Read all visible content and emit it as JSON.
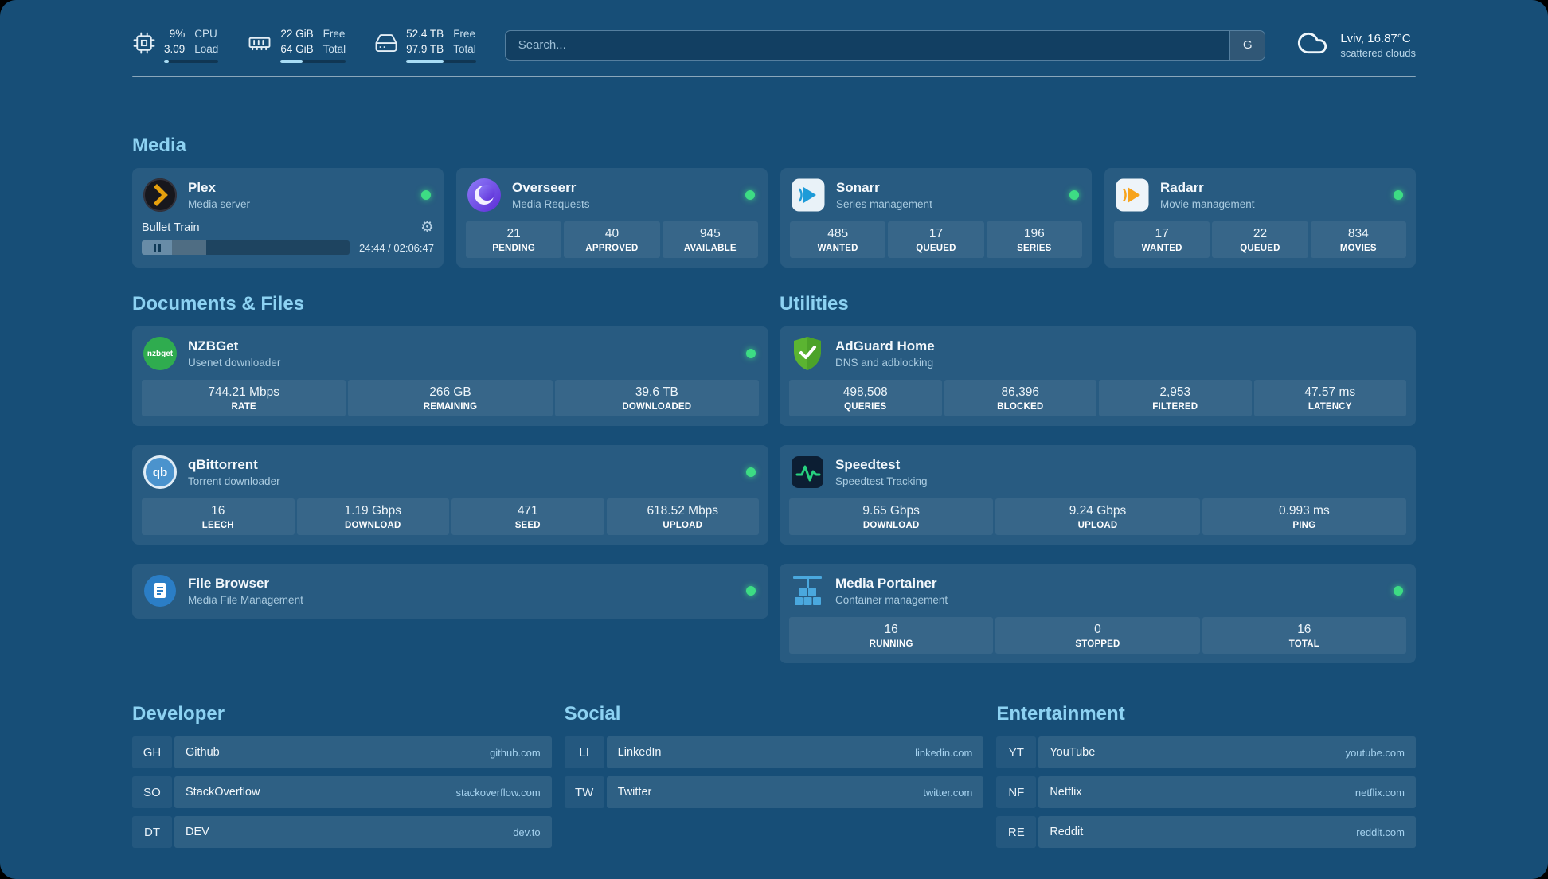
{
  "colors": {
    "background": "#174e77",
    "card": "rgba(255,255,255,0.075)",
    "accent_green": "#3ddc84",
    "heading_blue": "#8dd2f2",
    "link_blue": "#a5d2ef",
    "plex_gold": "#e5a00d"
  },
  "header": {
    "stats": [
      {
        "icon": "cpu-icon",
        "values": [
          "9%",
          "3.09"
        ],
        "labels": [
          "CPU",
          "Load"
        ],
        "progress": 9
      },
      {
        "icon": "memory-icon",
        "values": [
          "22 GiB",
          "64 GiB"
        ],
        "labels": [
          "Free",
          "Total"
        ],
        "progress": 34
      },
      {
        "icon": "disk-icon",
        "values": [
          "52.4 TB",
          "97.9 TB"
        ],
        "labels": [
          "Free",
          "Total"
        ],
        "progress": 54
      }
    ],
    "search": {
      "placeholder": "Search...",
      "provider_label": "G"
    },
    "weather": {
      "location": "Lviv, 16.87°C",
      "condition": "scattered clouds"
    }
  },
  "media": {
    "title": "Media",
    "plex": {
      "name": "Plex",
      "subtitle": "Media server",
      "now_playing": "Bullet Train",
      "time": "24:44 / 02:06:47",
      "progress": 19.5
    },
    "overseerr": {
      "name": "Overseerr",
      "subtitle": "Media Requests",
      "stats": [
        {
          "value": "21",
          "label": "PENDING"
        },
        {
          "value": "40",
          "label": "APPROVED"
        },
        {
          "value": "945",
          "label": "AVAILABLE"
        }
      ]
    },
    "sonarr": {
      "name": "Sonarr",
      "subtitle": "Series management",
      "stats": [
        {
          "value": "485",
          "label": "WANTED"
        },
        {
          "value": "17",
          "label": "QUEUED"
        },
        {
          "value": "196",
          "label": "SERIES"
        }
      ]
    },
    "radarr": {
      "name": "Radarr",
      "subtitle": "Movie management",
      "stats": [
        {
          "value": "17",
          "label": "WANTED"
        },
        {
          "value": "22",
          "label": "QUEUED"
        },
        {
          "value": "834",
          "label": "MOVIES"
        }
      ]
    }
  },
  "documents": {
    "title": "Documents & Files",
    "nzbget": {
      "name": "NZBGet",
      "subtitle": "Usenet downloader",
      "icon_text": "nzbget",
      "stats": [
        {
          "value": "744.21 Mbps",
          "label": "RATE"
        },
        {
          "value": "266 GB",
          "label": "REMAINING"
        },
        {
          "value": "39.6 TB",
          "label": "DOWNLOADED"
        }
      ]
    },
    "qbittorrent": {
      "name": "qBittorrent",
      "subtitle": "Torrent downloader",
      "icon_text": "qb",
      "stats": [
        {
          "value": "16",
          "label": "LEECH"
        },
        {
          "value": "1.19 Gbps",
          "label": "DOWNLOAD"
        },
        {
          "value": "471",
          "label": "SEED"
        },
        {
          "value": "618.52 Mbps",
          "label": "UPLOAD"
        }
      ]
    },
    "filebrowser": {
      "name": "File Browser",
      "subtitle": "Media File Management"
    }
  },
  "utilities": {
    "title": "Utilities",
    "adguard": {
      "name": "AdGuard Home",
      "subtitle": "DNS and adblocking",
      "stats": [
        {
          "value": "498,508",
          "label": "QUERIES"
        },
        {
          "value": "86,396",
          "label": "BLOCKED"
        },
        {
          "value": "2,953",
          "label": "FILTERED"
        },
        {
          "value": "47.57 ms",
          "label": "LATENCY"
        }
      ]
    },
    "speedtest": {
      "name": "Speedtest",
      "subtitle": "Speedtest Tracking",
      "stats": [
        {
          "value": "9.65 Gbps",
          "label": "DOWNLOAD"
        },
        {
          "value": "9.24 Gbps",
          "label": "UPLOAD"
        },
        {
          "value": "0.993 ms",
          "label": "PING"
        }
      ]
    },
    "portainer": {
      "name": "Media Portainer",
      "subtitle": "Container management",
      "stats": [
        {
          "value": "16",
          "label": "RUNNING"
        },
        {
          "value": "0",
          "label": "STOPPED"
        },
        {
          "value": "16",
          "label": "TOTAL"
        }
      ]
    }
  },
  "bookmarks": [
    {
      "title": "Developer",
      "items": [
        {
          "abbr": "GH",
          "name": "Github",
          "url": "github.com"
        },
        {
          "abbr": "SO",
          "name": "StackOverflow",
          "url": "stackoverflow.com"
        },
        {
          "abbr": "DT",
          "name": "DEV",
          "url": "dev.to"
        }
      ]
    },
    {
      "title": "Social",
      "items": [
        {
          "abbr": "LI",
          "name": "LinkedIn",
          "url": "linkedin.com"
        },
        {
          "abbr": "TW",
          "name": "Twitter",
          "url": "twitter.com"
        }
      ]
    },
    {
      "title": "Entertainment",
      "items": [
        {
          "abbr": "YT",
          "name": "YouTube",
          "url": "youtube.com"
        },
        {
          "abbr": "NF",
          "name": "Netflix",
          "url": "netflix.com"
        },
        {
          "abbr": "RE",
          "name": "Reddit",
          "url": "reddit.com"
        }
      ]
    }
  ]
}
